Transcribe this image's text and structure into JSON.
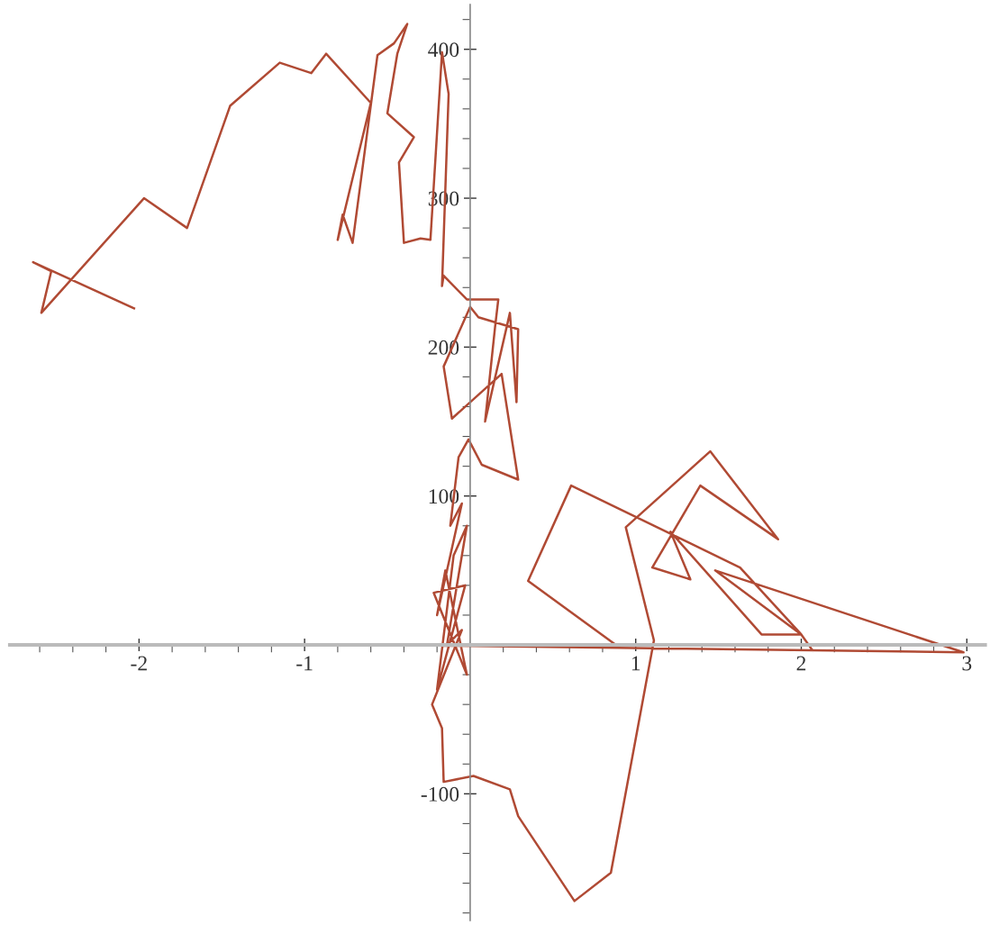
{
  "chart_data": {
    "type": "line",
    "xlim": [
      -2.78,
      3.11
    ],
    "ylim": [
      -185,
      430
    ],
    "xticks": [
      -2,
      -1,
      1,
      2,
      3,
      {
        "value": -2.6,
        "label": null
      },
      {
        "value": -2.4,
        "label": null
      },
      {
        "value": -2.2,
        "label": null
      },
      {
        "value": -1.8,
        "label": null
      },
      {
        "value": -1.6,
        "label": null
      },
      {
        "value": -1.4,
        "label": null
      },
      {
        "value": -1.2,
        "label": null
      },
      {
        "value": -0.8,
        "label": null
      },
      {
        "value": -0.6,
        "label": null
      },
      {
        "value": -0.4,
        "label": null
      },
      {
        "value": -0.2,
        "label": null
      },
      {
        "value": 0.2,
        "label": null
      },
      {
        "value": 0.4,
        "label": null
      },
      {
        "value": 0.6,
        "label": null
      },
      {
        "value": 0.8,
        "label": null
      },
      {
        "value": 1.2,
        "label": null
      },
      {
        "value": 1.4,
        "label": null
      },
      {
        "value": 1.6,
        "label": null
      },
      {
        "value": 1.8,
        "label": null
      },
      {
        "value": 2.2,
        "label": null
      },
      {
        "value": 2.4,
        "label": null
      },
      {
        "value": 2.6,
        "label": null
      },
      {
        "value": 2.8,
        "label": null
      }
    ],
    "yticks": [
      -100,
      100,
      200,
      300,
      400,
      {
        "value": -180,
        "label": null
      },
      {
        "value": -160,
        "label": null
      },
      {
        "value": -140,
        "label": null
      },
      {
        "value": -120,
        "label": null
      },
      {
        "value": -80,
        "label": null
      },
      {
        "value": -60,
        "label": null
      },
      {
        "value": -40,
        "label": null
      },
      {
        "value": -20,
        "label": null
      },
      {
        "value": 20,
        "label": null
      },
      {
        "value": 40,
        "label": null
      },
      {
        "value": 60,
        "label": null
      },
      {
        "value": 80,
        "label": null
      },
      {
        "value": 120,
        "label": null
      },
      {
        "value": 140,
        "label": null
      },
      {
        "value": 160,
        "label": null
      },
      {
        "value": 180,
        "label": null
      },
      {
        "value": 220,
        "label": null
      },
      {
        "value": 240,
        "label": null
      },
      {
        "value": 260,
        "label": null
      },
      {
        "value": 280,
        "label": null
      },
      {
        "value": 320,
        "label": null
      },
      {
        "value": 340,
        "label": null
      },
      {
        "value": 360,
        "label": null
      },
      {
        "value": 380,
        "label": null
      },
      {
        "value": 420,
        "label": null
      }
    ],
    "grid": false,
    "legend": false,
    "marker": "none",
    "line_style": "solid",
    "series": [
      {
        "color": "#b04a34",
        "x": [
          -2.03,
          -2.64,
          -2.53,
          -2.59,
          -1.97,
          -1.71,
          -1.45,
          -1.15,
          -0.96,
          -0.87,
          -0.6,
          -0.8,
          -0.77,
          -0.71,
          -0.56,
          -0.46,
          -0.38,
          -0.44,
          -0.5,
          -0.34,
          -0.43,
          -0.4,
          -0.3,
          -0.24,
          -0.17,
          -0.13,
          -0.17,
          -0.16,
          -0.02,
          0.17,
          0.15,
          0.09,
          0.24,
          0.28,
          0.29,
          0.05,
          0.0,
          -0.16,
          -0.11,
          0.19,
          0.29,
          0.07,
          -0.01,
          -0.07,
          -0.12,
          -0.05,
          -0.2,
          -0.15,
          -0.02,
          -0.22,
          -0.03,
          -0.2,
          -0.1,
          -0.02,
          -0.14,
          -0.05,
          -0.23,
          -0.17,
          -0.16,
          0.02,
          0.24,
          0.29,
          0.63,
          0.85,
          1.11,
          0.94,
          1.45,
          1.86,
          1.39,
          1.1,
          1.33,
          1.21,
          1.76,
          2.0,
          1.48,
          2.98,
          -0.5,
          0.88,
          0.35,
          0.61,
          1.63,
          2.0,
          2.07
        ],
        "values": [
          226,
          257,
          251,
          223,
          300,
          280,
          362,
          391,
          384,
          397,
          364,
          272,
          289,
          270,
          396,
          404,
          417,
          397,
          357,
          341,
          324,
          270,
          273,
          272,
          398,
          370,
          241,
          248,
          232,
          232,
          213,
          150,
          223,
          163,
          212,
          220,
          227,
          187,
          152,
          182,
          111,
          121,
          138,
          126,
          80,
          95,
          20,
          50,
          -20,
          35,
          40,
          -30,
          60,
          80,
          0,
          10,
          -40,
          -56,
          -92,
          -88,
          -97,
          -115,
          -172,
          -153,
          3,
          79,
          130,
          71,
          107,
          52,
          44,
          76,
          7,
          7,
          50,
          -5,
          0,
          0,
          43,
          107,
          52,
          7,
          -4
        ]
      }
    ]
  }
}
